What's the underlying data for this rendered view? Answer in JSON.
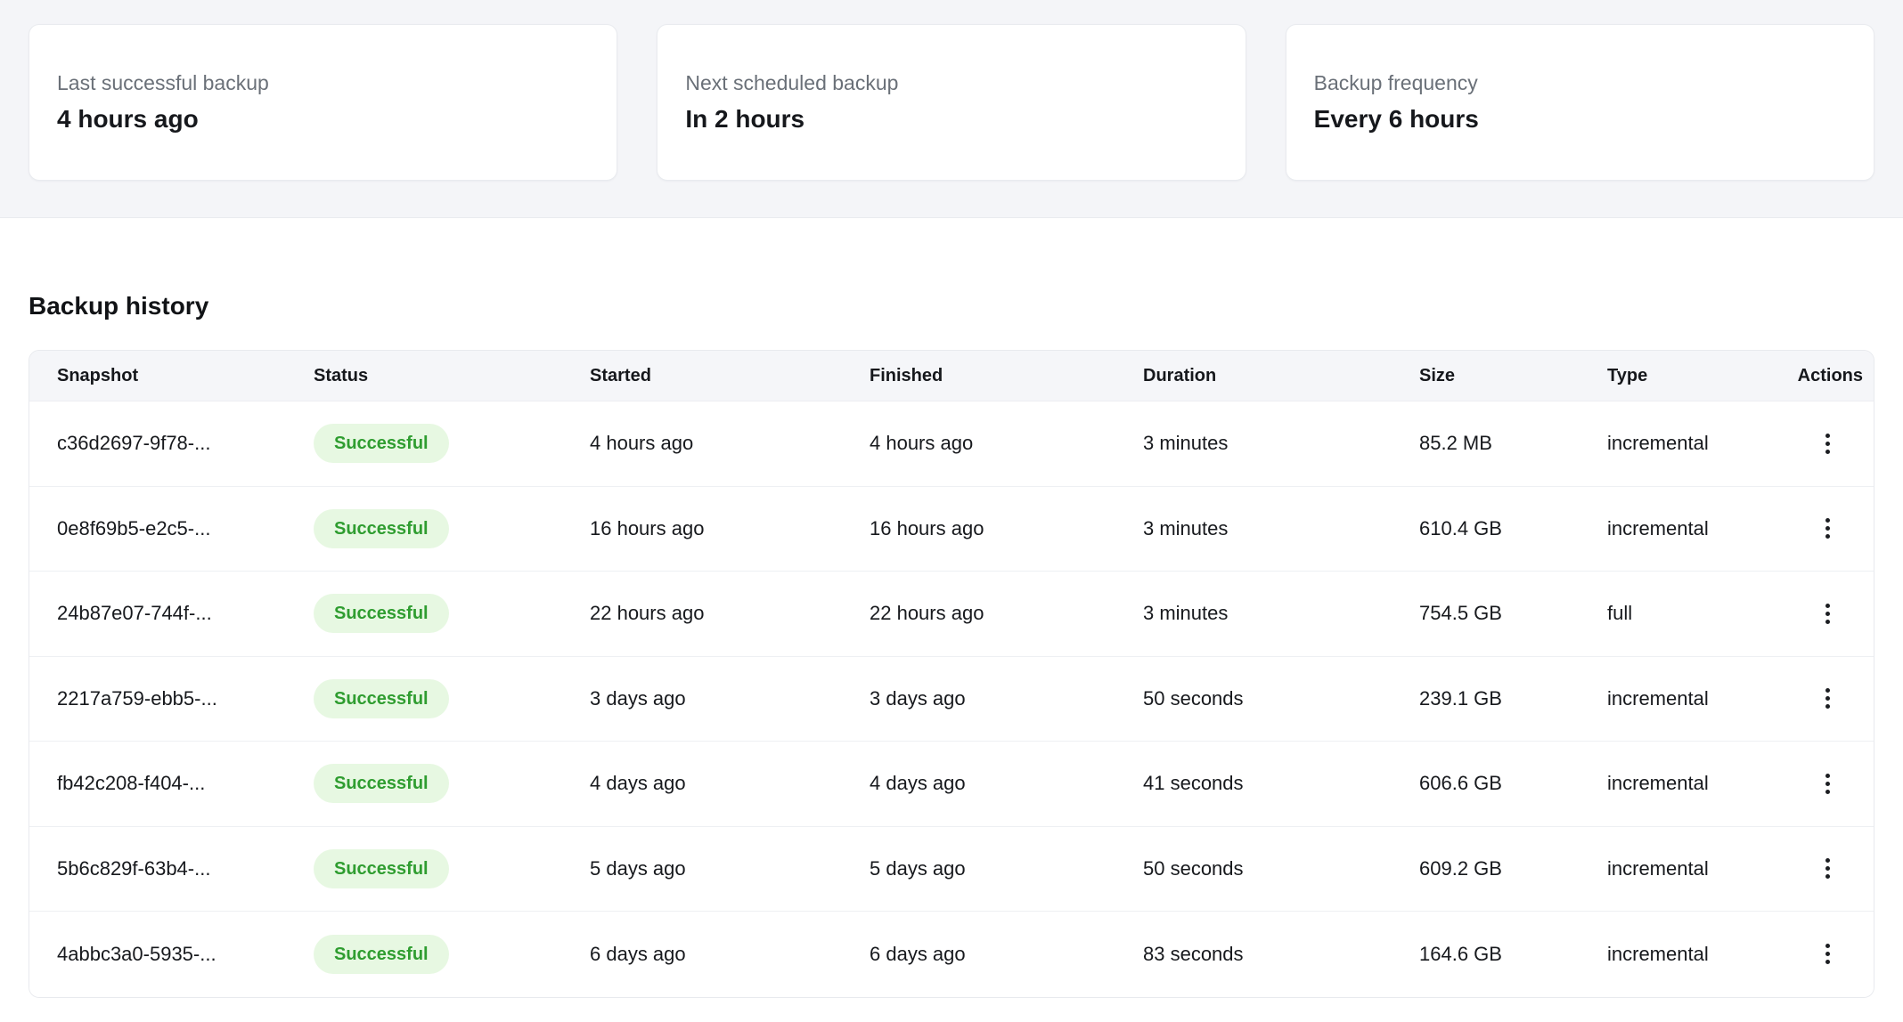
{
  "summary_cards": [
    {
      "label": "Last successful backup",
      "value": "4 hours ago"
    },
    {
      "label": "Next scheduled backup",
      "value": "In 2 hours"
    },
    {
      "label": "Backup frequency",
      "value": "Every 6 hours"
    }
  ],
  "history": {
    "title": "Backup history",
    "columns": [
      "Snapshot",
      "Status",
      "Started",
      "Finished",
      "Duration",
      "Size",
      "Type",
      "Actions"
    ],
    "rows": [
      {
        "snapshot": "c36d2697-9f78-...",
        "status": "Successful",
        "started": "4 hours ago",
        "finished": "4 hours ago",
        "duration": "3 minutes",
        "size": "85.2 MB",
        "type": "incremental"
      },
      {
        "snapshot": "0e8f69b5-e2c5-...",
        "status": "Successful",
        "started": "16 hours ago",
        "finished": "16 hours ago",
        "duration": "3 minutes",
        "size": "610.4 GB",
        "type": "incremental"
      },
      {
        "snapshot": "24b87e07-744f-...",
        "status": "Successful",
        "started": "22 hours ago",
        "finished": "22 hours ago",
        "duration": "3 minutes",
        "size": "754.5 GB",
        "type": "full"
      },
      {
        "snapshot": "2217a759-ebb5-...",
        "status": "Successful",
        "started": "3 days ago",
        "finished": "3 days ago",
        "duration": "50 seconds",
        "size": "239.1 GB",
        "type": "incremental"
      },
      {
        "snapshot": "fb42c208-f404-...",
        "status": "Successful",
        "started": "4 days ago",
        "finished": "4 days ago",
        "duration": "41 seconds",
        "size": "606.6 GB",
        "type": "incremental"
      },
      {
        "snapshot": "5b6c829f-63b4-...",
        "status": "Successful",
        "started": "5 days ago",
        "finished": "5 days ago",
        "duration": "50 seconds",
        "size": "609.2 GB",
        "type": "incremental"
      },
      {
        "snapshot": "4abbc3a0-5935-...",
        "status": "Successful",
        "started": "6 days ago",
        "finished": "6 days ago",
        "duration": "83 seconds",
        "size": "164.6 GB",
        "type": "incremental"
      }
    ]
  },
  "colors": {
    "band_bg": "#f4f5f8",
    "card_border": "#e9ebef",
    "label_gray": "#6a7078",
    "text_dark": "#16181c",
    "table_header_bg": "#f5f6f9",
    "row_divider": "#eef0f3",
    "badge_bg": "#e7f8e2",
    "badge_text": "#2f9d30"
  }
}
